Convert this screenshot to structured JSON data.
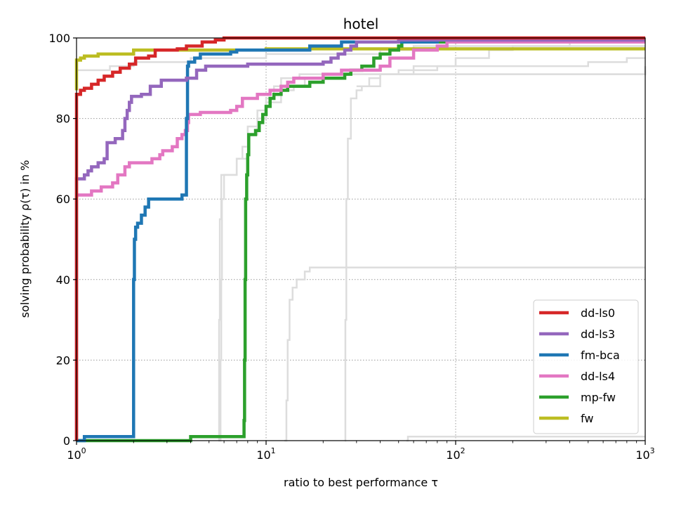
{
  "chart_data": {
    "type": "line",
    "title": "hotel",
    "xlabel": "ratio to best performance τ",
    "ylabel": "solving probability ρ(τ) in %",
    "xscale": "log",
    "xlim": [
      1,
      1000
    ],
    "ylim": [
      0,
      100
    ],
    "x_ticks": [
      {
        "value": 1,
        "base": "10",
        "exp": "0"
      },
      {
        "value": 10,
        "base": "10",
        "exp": "1"
      },
      {
        "value": 100,
        "base": "10",
        "exp": "2"
      },
      {
        "value": 1000,
        "base": "10",
        "exp": "3"
      }
    ],
    "y_ticks": [
      {
        "value": 0,
        "label": "0"
      },
      {
        "value": 20,
        "label": "20"
      },
      {
        "value": 40,
        "label": "40"
      },
      {
        "value": 60,
        "label": "60"
      },
      {
        "value": 80,
        "label": "80"
      },
      {
        "value": 100,
        "label": "100"
      }
    ],
    "grid": true,
    "legend_position": "lower-right",
    "background_series": [
      {
        "color": "#dddddd",
        "points": [
          [
            5.7,
            0
          ],
          [
            5.75,
            20
          ],
          [
            5.8,
            40
          ],
          [
            5.85,
            60
          ],
          [
            6.0,
            66
          ],
          [
            6.8,
            66
          ],
          [
            7.0,
            70
          ],
          [
            7.5,
            73
          ],
          [
            8.0,
            78
          ],
          [
            9.0,
            82
          ],
          [
            10.0,
            85
          ],
          [
            11.0,
            88
          ],
          [
            12.0,
            90
          ],
          [
            15.0,
            91
          ],
          [
            1000,
            93
          ]
        ]
      },
      {
        "color": "#dddddd",
        "points": [
          [
            5.6,
            0
          ],
          [
            5.65,
            30
          ],
          [
            5.7,
            55
          ],
          [
            5.8,
            66
          ],
          [
            7,
            70
          ],
          [
            8,
            76
          ],
          [
            9,
            80
          ],
          [
            10,
            84
          ],
          [
            12,
            87
          ],
          [
            14,
            88
          ],
          [
            16,
            90
          ],
          [
            20,
            91
          ],
          [
            1000,
            92
          ]
        ]
      },
      {
        "color": "#dddddd",
        "points": [
          [
            12.5,
            0
          ],
          [
            12.8,
            10
          ],
          [
            13,
            25
          ],
          [
            13.3,
            35
          ],
          [
            13.8,
            38
          ],
          [
            14.5,
            40
          ],
          [
            16,
            42
          ],
          [
            17,
            43
          ],
          [
            1000,
            43
          ]
        ]
      },
      {
        "color": "#dddddd",
        "points": [
          [
            26,
            0
          ],
          [
            26.2,
            30
          ],
          [
            26.5,
            60
          ],
          [
            27,
            75
          ],
          [
            28,
            85
          ],
          [
            30,
            87
          ],
          [
            32,
            88
          ],
          [
            35,
            90
          ],
          [
            40,
            91
          ],
          [
            50,
            92
          ],
          [
            80,
            93
          ],
          [
            300,
            93
          ],
          [
            500,
            94
          ],
          [
            800,
            95
          ],
          [
            1000,
            95
          ]
        ]
      },
      {
        "color": "#dddddd",
        "points": [
          [
            55,
            0
          ],
          [
            56,
            1
          ],
          [
            1000,
            1
          ]
        ]
      },
      {
        "color": "#dddddd",
        "points": [
          [
            1,
            92
          ],
          [
            1.5,
            93
          ],
          [
            2,
            94
          ],
          [
            4,
            95
          ],
          [
            10,
            96
          ],
          [
            40,
            97
          ],
          [
            60,
            98
          ],
          [
            1000,
            98
          ]
        ]
      },
      {
        "color": "#dddddd",
        "points": [
          [
            30,
            88
          ],
          [
            40,
            91
          ],
          [
            60,
            93
          ],
          [
            100,
            95
          ],
          [
            150,
            97
          ],
          [
            200,
            98
          ],
          [
            400,
            99
          ],
          [
            1000,
            99
          ]
        ]
      }
    ],
    "series": [
      {
        "name": "dd-ls0",
        "color": "#d62728",
        "points": [
          [
            1,
            0
          ],
          [
            1,
            86
          ],
          [
            1.05,
            87
          ],
          [
            1.1,
            87.5
          ],
          [
            1.2,
            88.5
          ],
          [
            1.3,
            89.5
          ],
          [
            1.4,
            90.5
          ],
          [
            1.55,
            91.5
          ],
          [
            1.7,
            92.5
          ],
          [
            1.9,
            93.5
          ],
          [
            2.05,
            95
          ],
          [
            2.4,
            95.5
          ],
          [
            2.6,
            97
          ],
          [
            3.4,
            97.3
          ],
          [
            3.8,
            98
          ],
          [
            4.6,
            99
          ],
          [
            5.4,
            99.5
          ],
          [
            6,
            100
          ],
          [
            1000,
            100
          ]
        ]
      },
      {
        "name": "dd-ls3",
        "color": "#9467bd",
        "points": [
          [
            1,
            0
          ],
          [
            1,
            65
          ],
          [
            1.1,
            66
          ],
          [
            1.15,
            67
          ],
          [
            1.2,
            68
          ],
          [
            1.3,
            69
          ],
          [
            1.4,
            70
          ],
          [
            1.45,
            74
          ],
          [
            1.6,
            75
          ],
          [
            1.75,
            77
          ],
          [
            1.8,
            80
          ],
          [
            1.85,
            82
          ],
          [
            1.9,
            84
          ],
          [
            1.95,
            85.5
          ],
          [
            2.2,
            86
          ],
          [
            2.45,
            88
          ],
          [
            2.8,
            89.5
          ],
          [
            3.8,
            90
          ],
          [
            4.3,
            92
          ],
          [
            4.8,
            93
          ],
          [
            8,
            93.5
          ],
          [
            20,
            94
          ],
          [
            22,
            95
          ],
          [
            24,
            96
          ],
          [
            26,
            97
          ],
          [
            28,
            98
          ],
          [
            30,
            99
          ],
          [
            50,
            99.5
          ],
          [
            1000,
            99.5
          ]
        ]
      },
      {
        "name": "fm-bca",
        "color": "#1f77b4",
        "points": [
          [
            1,
            0
          ],
          [
            1.05,
            0
          ],
          [
            1.1,
            1
          ],
          [
            1.99,
            1
          ],
          [
            2.0,
            20
          ],
          [
            2.0,
            40
          ],
          [
            2.02,
            50
          ],
          [
            2.05,
            53
          ],
          [
            2.1,
            54
          ],
          [
            2.2,
            56
          ],
          [
            2.3,
            58
          ],
          [
            2.4,
            60
          ],
          [
            3.5,
            60
          ],
          [
            3.6,
            61
          ],
          [
            3.75,
            61
          ],
          [
            3.8,
            80
          ],
          [
            3.85,
            93
          ],
          [
            3.9,
            94
          ],
          [
            4.2,
            95
          ],
          [
            4.5,
            96
          ],
          [
            6.5,
            96.5
          ],
          [
            7,
            97
          ],
          [
            17,
            98
          ],
          [
            25,
            99
          ],
          [
            80,
            99.5
          ],
          [
            1000,
            99.5
          ]
        ]
      },
      {
        "name": "dd-ls4",
        "color": "#e377c2",
        "points": [
          [
            1,
            61
          ],
          [
            1.2,
            62
          ],
          [
            1.35,
            63
          ],
          [
            1.55,
            64
          ],
          [
            1.65,
            66
          ],
          [
            1.8,
            68
          ],
          [
            1.9,
            69
          ],
          [
            2.5,
            70
          ],
          [
            2.75,
            71
          ],
          [
            2.85,
            72
          ],
          [
            3.2,
            73
          ],
          [
            3.4,
            75
          ],
          [
            3.6,
            76
          ],
          [
            3.75,
            77
          ],
          [
            3.85,
            79
          ],
          [
            3.9,
            81
          ],
          [
            4.5,
            81.5
          ],
          [
            6.5,
            82
          ],
          [
            7,
            83
          ],
          [
            7.5,
            85
          ],
          [
            9,
            86
          ],
          [
            10.5,
            87
          ],
          [
            12,
            88
          ],
          [
            13,
            89
          ],
          [
            14,
            90
          ],
          [
            20,
            91
          ],
          [
            25,
            92
          ],
          [
            40,
            93
          ],
          [
            45,
            95
          ],
          [
            60,
            97
          ],
          [
            80,
            98
          ],
          [
            90,
            99
          ],
          [
            1000,
            99
          ]
        ]
      },
      {
        "name": "mp-fw",
        "color": "#2ca02c",
        "points": [
          [
            1,
            0
          ],
          [
            3.9,
            0
          ],
          [
            4,
            1
          ],
          [
            7.6,
            1
          ],
          [
            7.65,
            5
          ],
          [
            7.7,
            20
          ],
          [
            7.75,
            40
          ],
          [
            7.8,
            60
          ],
          [
            7.9,
            66
          ],
          [
            8,
            71
          ],
          [
            8.1,
            76
          ],
          [
            8.8,
            77
          ],
          [
            9.2,
            79
          ],
          [
            9.6,
            81
          ],
          [
            10,
            83
          ],
          [
            10.5,
            85
          ],
          [
            11,
            86
          ],
          [
            12,
            87
          ],
          [
            13,
            88
          ],
          [
            17,
            89
          ],
          [
            20,
            90
          ],
          [
            26,
            91
          ],
          [
            28,
            92
          ],
          [
            32,
            93
          ],
          [
            37,
            95
          ],
          [
            40,
            96
          ],
          [
            45,
            97
          ],
          [
            50,
            98
          ],
          [
            52,
            99
          ],
          [
            130,
            99
          ],
          [
            240,
            99.5
          ],
          [
            1000,
            99.5
          ]
        ]
      },
      {
        "name": "fw",
        "color": "#bcbd22",
        "points": [
          [
            1,
            87
          ],
          [
            1,
            94.5
          ],
          [
            1.05,
            95
          ],
          [
            1.1,
            95.5
          ],
          [
            1.3,
            96
          ],
          [
            2,
            97
          ],
          [
            10,
            97.3
          ],
          [
            1000,
            97.3
          ]
        ]
      }
    ]
  }
}
